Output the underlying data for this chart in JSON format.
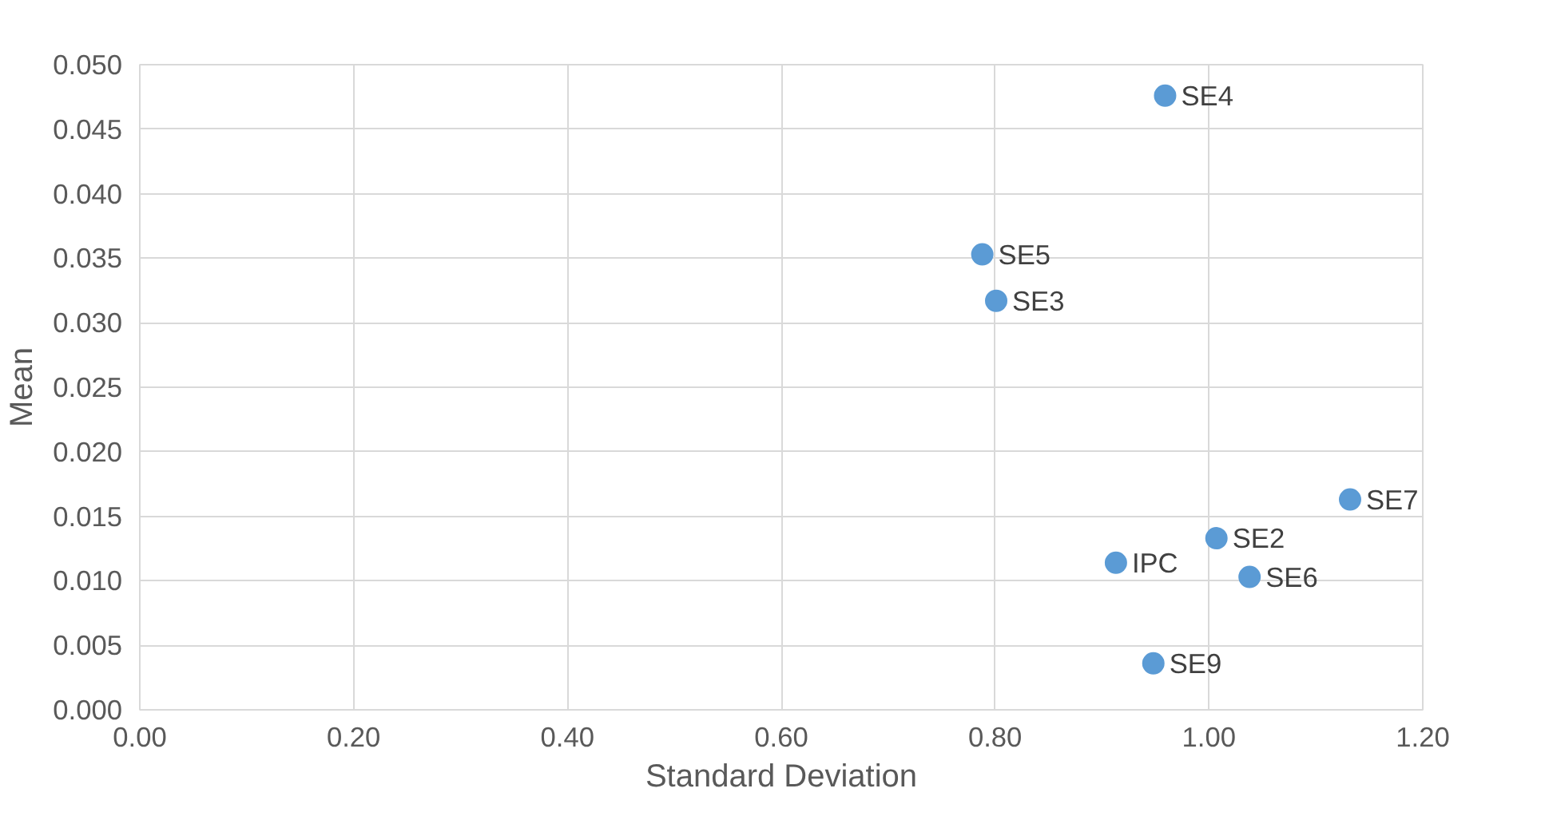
{
  "chart_data": {
    "type": "scatter",
    "xlabel": "Standard Deviation",
    "ylabel": "Mean",
    "x": [
      0.959,
      0.788,
      0.801,
      1.132,
      1.007,
      0.913,
      1.038,
      0.948
    ],
    "series": [
      {
        "color": "#5b9bd5",
        "values": [
          0.0476,
          0.0353,
          0.0317,
          0.0163,
          0.0133,
          0.0114,
          0.0103,
          0.0036
        ]
      }
    ],
    "annotations": [
      {
        "text": "SE4",
        "x": 0.959,
        "y": 0.0476
      },
      {
        "text": "SE5",
        "x": 0.788,
        "y": 0.0353
      },
      {
        "text": "SE3",
        "x": 0.801,
        "y": 0.0317
      },
      {
        "text": "SE7",
        "x": 1.132,
        "y": 0.0163
      },
      {
        "text": "SE2",
        "x": 1.007,
        "y": 0.0133
      },
      {
        "text": "IPC",
        "x": 0.913,
        "y": 0.0114
      },
      {
        "text": "SE6",
        "x": 1.038,
        "y": 0.0103
      },
      {
        "text": "SE9",
        "x": 0.948,
        "y": 0.0036
      }
    ],
    "xlim": [
      0,
      1.2
    ],
    "ylim": [
      0,
      0.05
    ],
    "xticks": [
      {
        "value": 0,
        "label": "0.00"
      },
      {
        "value": 0.2,
        "label": "0.20"
      },
      {
        "value": 0.4,
        "label": "0.40"
      },
      {
        "value": 0.6,
        "label": "0.60"
      },
      {
        "value": 0.8,
        "label": "0.80"
      },
      {
        "value": 1.0,
        "label": "1.00"
      },
      {
        "value": 1.2,
        "label": "1.20"
      }
    ],
    "yticks": [
      {
        "value": 0,
        "label": "0.000"
      },
      {
        "value": 0.005,
        "label": "0.005"
      },
      {
        "value": 0.01,
        "label": "0.010"
      },
      {
        "value": 0.015,
        "label": "0.015"
      },
      {
        "value": 0.02,
        "label": "0.020"
      },
      {
        "value": 0.025,
        "label": "0.025"
      },
      {
        "value": 0.03,
        "label": "0.030"
      },
      {
        "value": 0.035,
        "label": "0.035"
      },
      {
        "value": 0.04,
        "label": "0.040"
      },
      {
        "value": 0.045,
        "label": "0.045"
      },
      {
        "value": 0.05,
        "label": "0.050"
      }
    ],
    "grid": true,
    "marker": "circle"
  }
}
